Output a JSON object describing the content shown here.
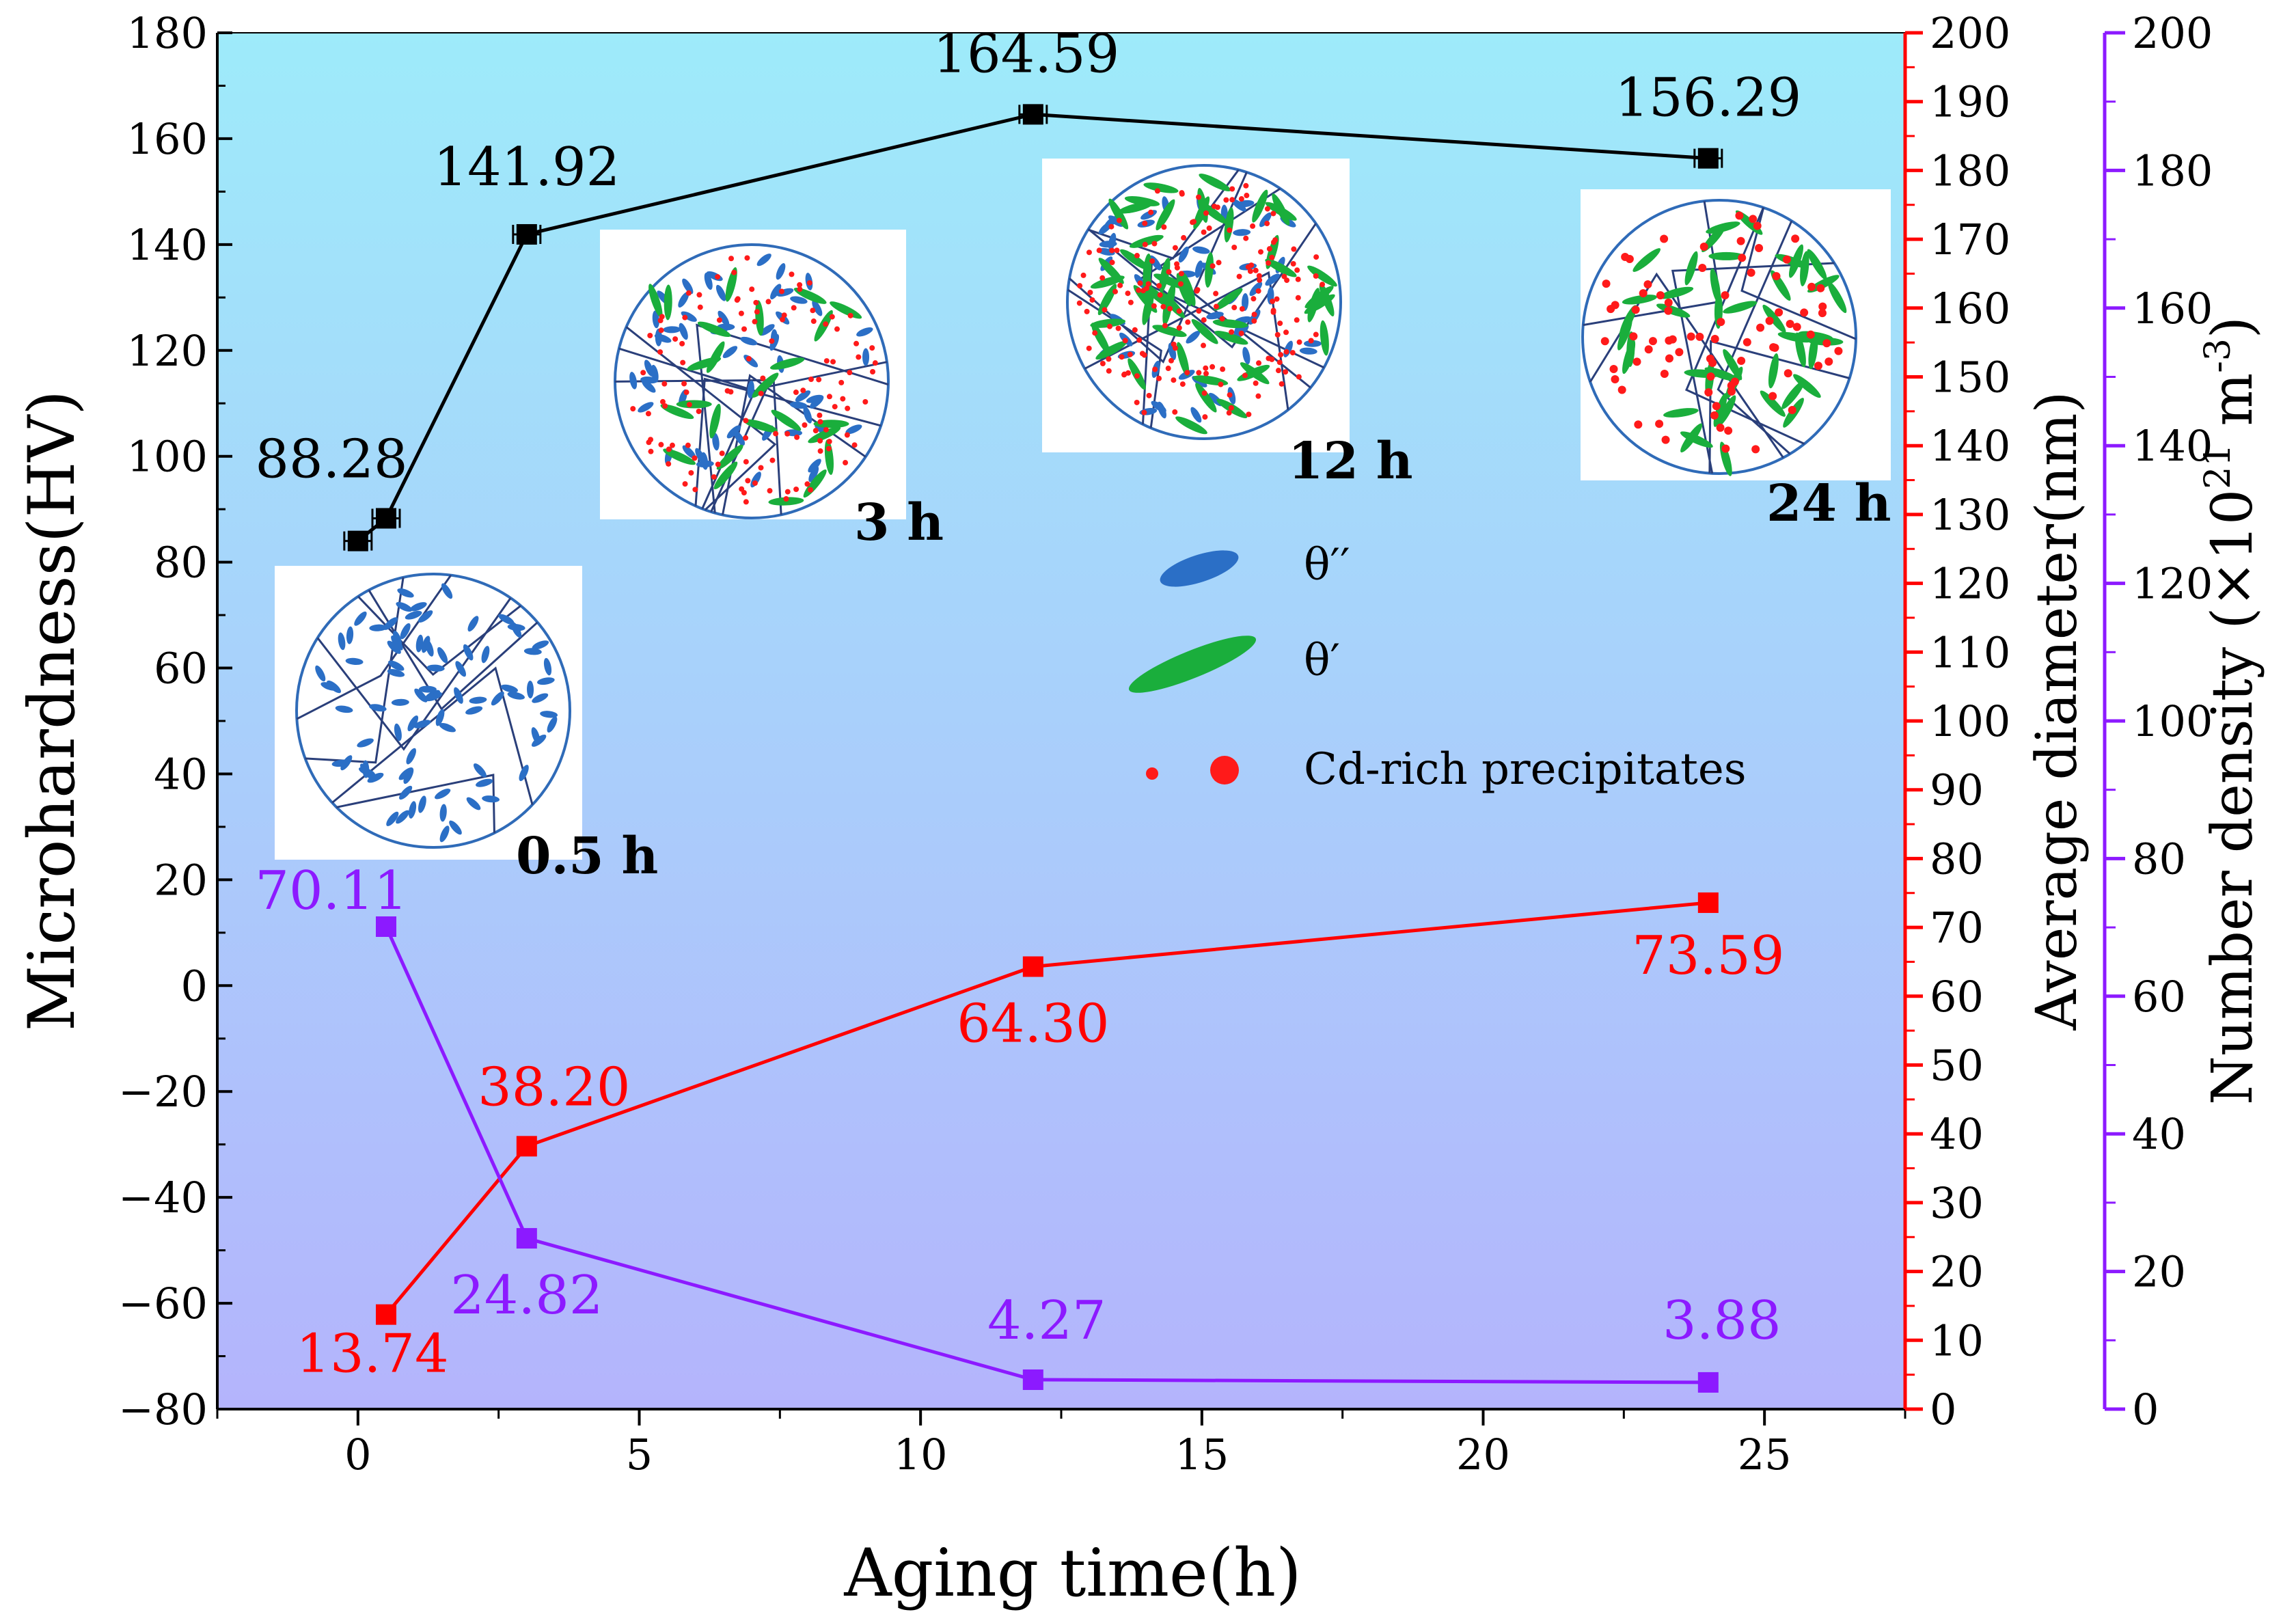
{
  "chart_data": {
    "type": "line",
    "xlabel": "Aging time(h)",
    "x_ticks": [
      "0",
      "5",
      "10",
      "15",
      "20",
      "25"
    ],
    "xlim": [
      -2.5,
      27.5
    ],
    "axes": {
      "left": {
        "label": "Microhardness(HV)",
        "lim": [
          -80,
          180
        ],
        "ticks": [
          "180",
          "160",
          "140",
          "120",
          "100",
          "80",
          "60",
          "40",
          "20",
          "0",
          "−20",
          "−40",
          "−60",
          "−80"
        ],
        "color": "#000000"
      },
      "right1": {
        "label": "Average diameter(nm)",
        "lim": [
          0,
          200
        ],
        "ticks": [
          "200",
          "190",
          "180",
          "170",
          "160",
          "150",
          "140",
          "130",
          "120",
          "110",
          "100",
          "90",
          "80",
          "70",
          "60",
          "50",
          "40",
          "30",
          "20",
          "10",
          "0"
        ],
        "color": "#ff0000"
      },
      "right2": {
        "label_main": "Number density (×10",
        "label_sup1": "21",
        "label_mid": " m",
        "label_sup2": "-3",
        "label_end": ")",
        "lim": [
          0,
          200
        ],
        "ticks": [
          "200",
          "180",
          "160",
          "140",
          "120",
          "100",
          "80",
          "60",
          "40",
          "20",
          "0"
        ],
        "color": "#8c1aff"
      }
    },
    "series": [
      {
        "name": "Microhardness",
        "axis": "left",
        "color": "#000000",
        "x": [
          0,
          0.5,
          3,
          12,
          24
        ],
        "values": [
          84,
          88.28,
          141.92,
          164.59,
          156.29
        ],
        "labels": [
          "",
          "88.28",
          "141.92",
          "164.59",
          "156.29"
        ]
      },
      {
        "name": "Average diameter",
        "axis": "right1",
        "color": "#ff0000",
        "x": [
          0.5,
          3,
          12,
          24
        ],
        "values": [
          13.74,
          38.2,
          64.3,
          73.59
        ],
        "labels": [
          "13.74",
          "38.20",
          "64.30",
          "73.59"
        ]
      },
      {
        "name": "Number density",
        "axis": "right2",
        "color": "#8c1aff",
        "x": [
          0.5,
          3,
          12,
          24
        ],
        "values": [
          70.11,
          24.82,
          4.27,
          3.88
        ],
        "labels": [
          "70.11",
          "24.82",
          "4.27",
          "3.88"
        ]
      }
    ],
    "insets": [
      {
        "label": "0.5 h"
      },
      {
        "label": "3 h"
      },
      {
        "label": "12 h"
      },
      {
        "label": "24 h"
      }
    ],
    "legend": {
      "items": [
        "θ′′",
        "θ′",
        "Cd-rich precipitates"
      ],
      "colors": [
        "#2b6fc6",
        "#1aae3c",
        "#ff1a1a"
      ]
    },
    "background": {
      "top": "#9eebfa",
      "bottom": "#b4b4fc"
    }
  }
}
